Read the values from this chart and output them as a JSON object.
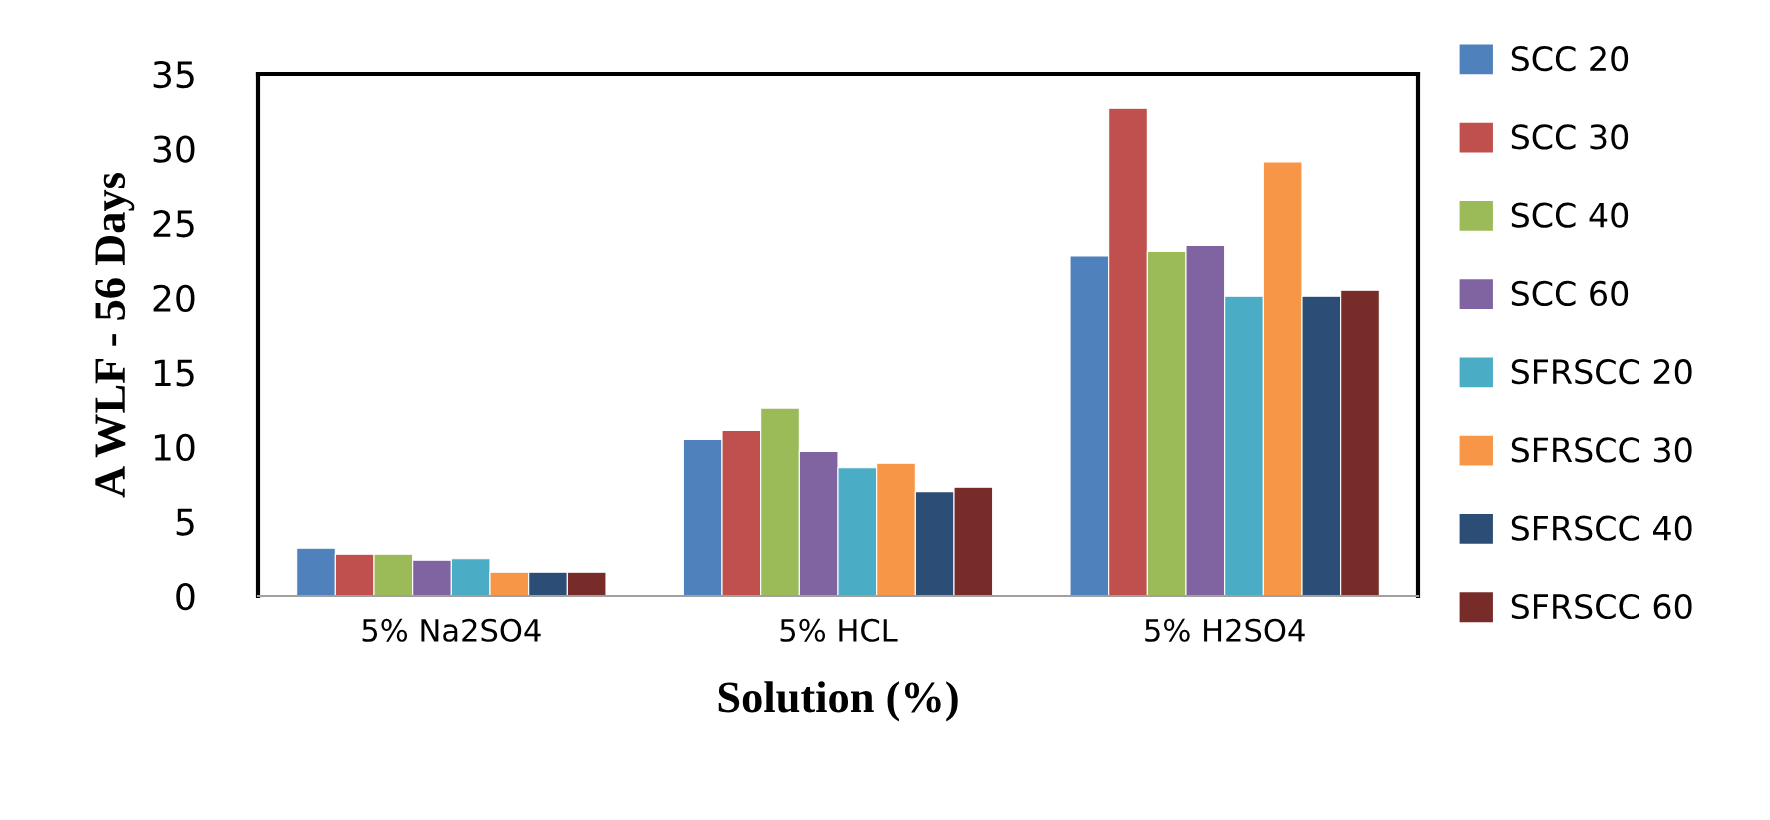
{
  "chart_data": {
    "type": "bar",
    "xlabel": "Solution (%)",
    "ylabel": "A WLF - 56 Days",
    "categories": [
      "5% Na2SO4",
      "5% HCL",
      "5% H2SO4"
    ],
    "series": [
      {
        "name": "SCC 20",
        "color": "#4f81bd",
        "values": [
          3.2,
          10.5,
          22.8
        ]
      },
      {
        "name": "SCC 30",
        "color": "#c0504d",
        "values": [
          2.8,
          11.1,
          32.7
        ]
      },
      {
        "name": "SCC 40",
        "color": "#9bbb59",
        "values": [
          2.8,
          12.6,
          23.1
        ]
      },
      {
        "name": "SCC 60",
        "color": "#8064a2",
        "values": [
          2.4,
          9.7,
          23.5
        ]
      },
      {
        "name": "SFRSCC 20",
        "color": "#4bacc6",
        "values": [
          2.5,
          8.6,
          20.1
        ]
      },
      {
        "name": "SFRSCC 30",
        "color": "#f79646",
        "values": [
          1.6,
          8.9,
          29.1
        ]
      },
      {
        "name": "SFRSCC 40",
        "color": "#2c4d75",
        "values": [
          1.6,
          7.0,
          20.1
        ]
      },
      {
        "name": "SFRSCC 60",
        "color": "#772c2a",
        "values": [
          1.6,
          7.3,
          20.5
        ]
      }
    ],
    "ylim": [
      0,
      35
    ],
    "yticks": [
      0,
      5,
      10,
      15,
      20,
      25,
      30,
      35
    ],
    "grid": false,
    "legend": "right"
  }
}
